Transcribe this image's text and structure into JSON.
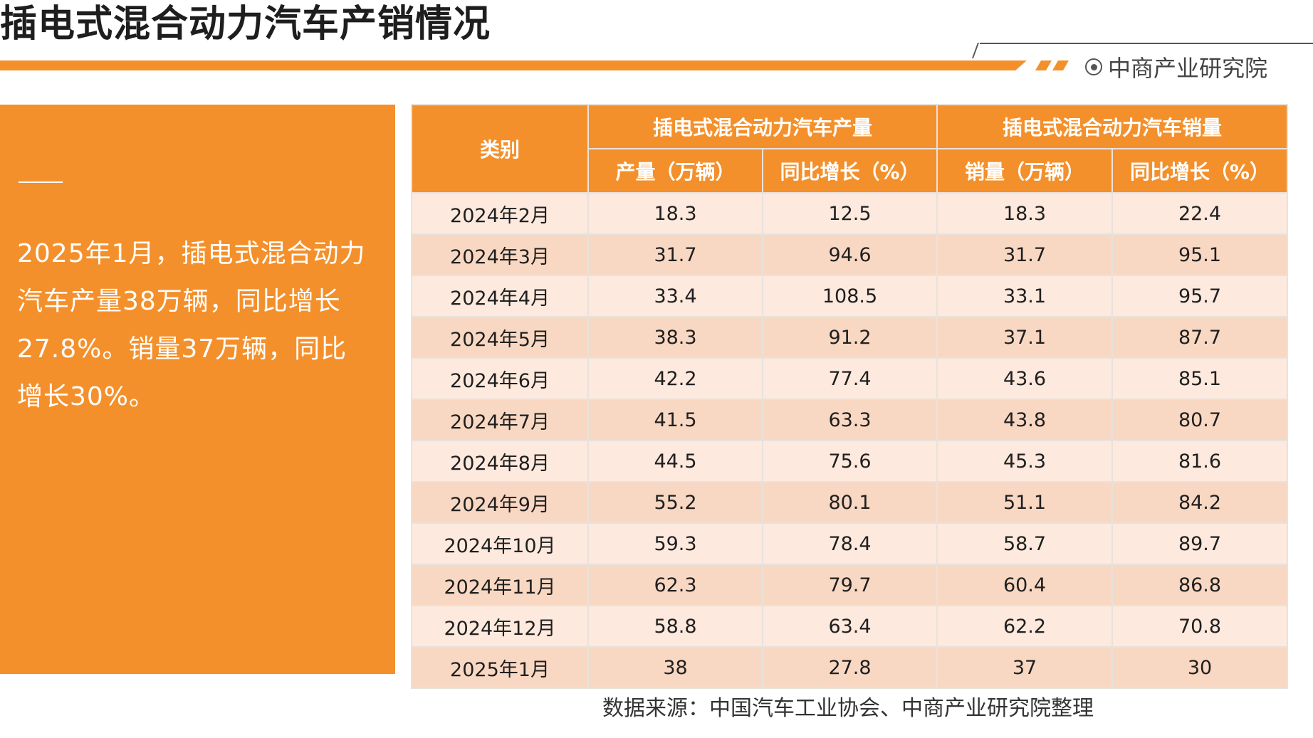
{
  "title": "插电式混合动力汽车产销情况",
  "brand": "中商产业研究院",
  "summary": "2025年1月，插电式混合动力汽车产量38万辆，同比增长27.8%。销量37万辆，同比增长30%。",
  "table": {
    "category_header": "类别",
    "group_headers": [
      "插电式混合动力汽车产量",
      "插电式混合动力汽车销量"
    ],
    "sub_headers": [
      "产量（万辆）",
      "同比增长（%）",
      "销量（万辆）",
      "同比增长（%）"
    ],
    "rows": [
      [
        "2024年2月",
        "18.3",
        "12.5",
        "18.3",
        "22.4"
      ],
      [
        "2024年3月",
        "31.7",
        "94.6",
        "31.7",
        "95.1"
      ],
      [
        "2024年4月",
        "33.4",
        "108.5",
        "33.1",
        "95.7"
      ],
      [
        "2024年5月",
        "38.3",
        "91.2",
        "37.1",
        "87.7"
      ],
      [
        "2024年6月",
        "42.2",
        "77.4",
        "43.6",
        "85.1"
      ],
      [
        "2024年7月",
        "41.5",
        "63.3",
        "43.8",
        "80.7"
      ],
      [
        "2024年8月",
        "44.5",
        "75.6",
        "45.3",
        "81.6"
      ],
      [
        "2024年9月",
        "55.2",
        "80.1",
        "51.1",
        "84.2"
      ],
      [
        "2024年10月",
        "59.3",
        "78.4",
        "58.7",
        "89.7"
      ],
      [
        "2024年11月",
        "62.3",
        "79.7",
        "60.4",
        "86.8"
      ],
      [
        "2024年12月",
        "58.8",
        "63.4",
        "62.2",
        "70.8"
      ],
      [
        "2025年1月",
        "38",
        "27.8",
        "37",
        "30"
      ]
    ]
  },
  "source": "数据来源：中国汽车工业协会、中商产业研究院整理",
  "colors": {
    "accent": "#f4902b",
    "row_light": "#fde9dd",
    "row_dark": "#f9d8c3"
  }
}
